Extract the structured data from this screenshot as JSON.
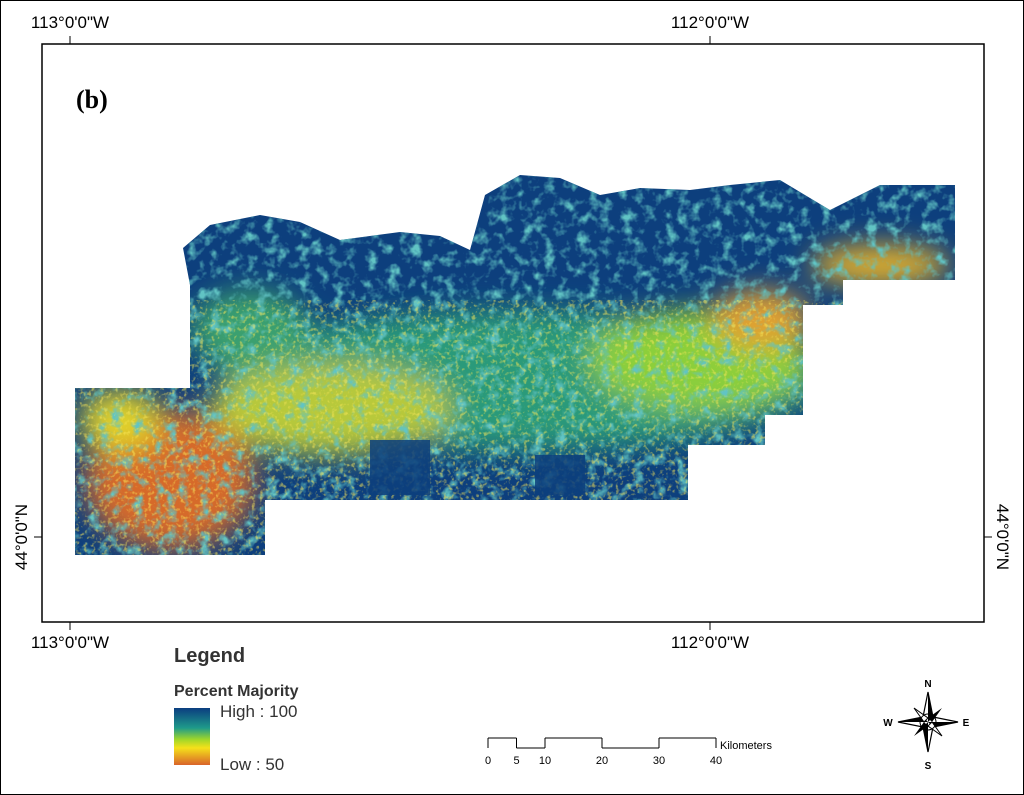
{
  "map": {
    "panel_label": "(b)",
    "top_labels": [
      "113°0'0\"W",
      "112°0'0\"W"
    ],
    "bottom_labels": [
      "113°0'0\"W",
      "112°0'0\"W"
    ],
    "left_label": "44°0'0\"N",
    "right_label": "44°0'0\"N"
  },
  "legend": {
    "title": "Legend",
    "subtitle": "Percent Majority",
    "high": "High : 100",
    "low": "Low : 50"
  },
  "scale_bar": {
    "ticks": [
      0,
      5,
      10,
      20,
      30,
      40
    ],
    "unit": "Kilometers"
  },
  "compass": {
    "n": "N",
    "s": "S",
    "e": "E",
    "w": "W"
  }
}
